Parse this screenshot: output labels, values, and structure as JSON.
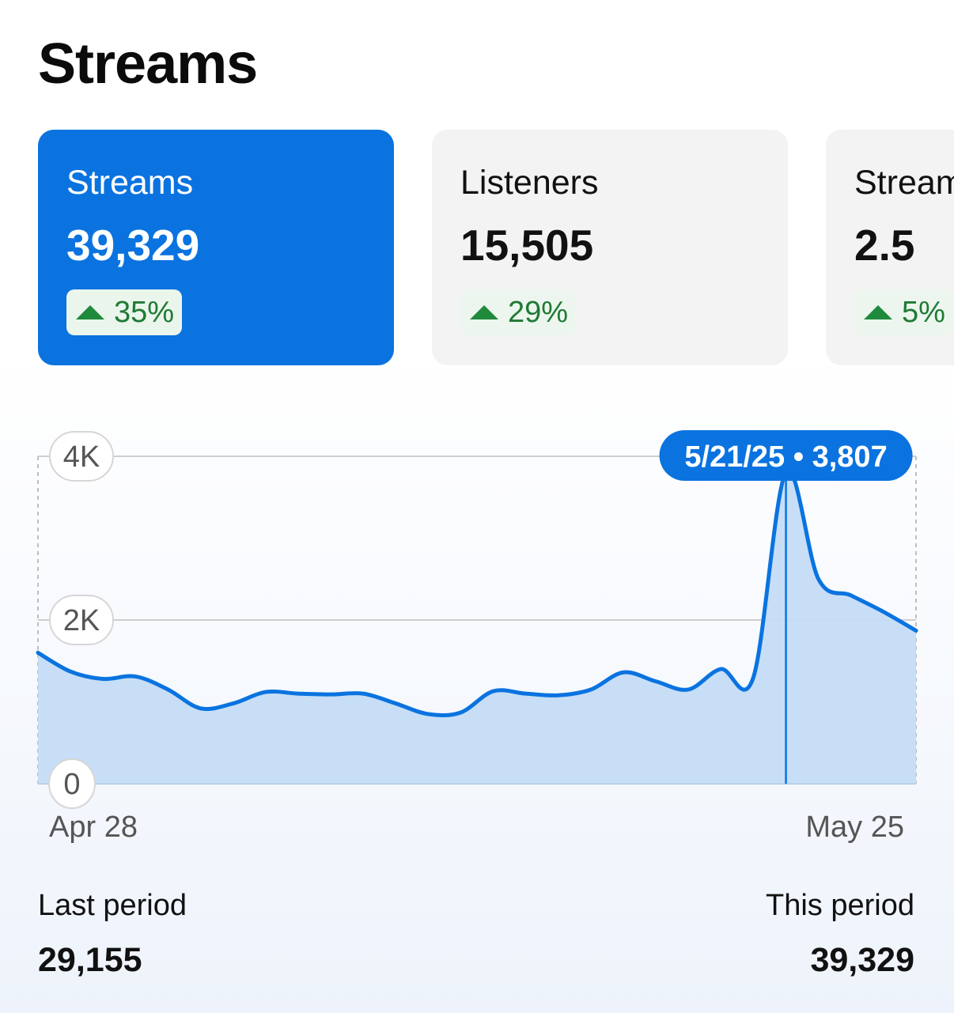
{
  "page_title": "Streams",
  "cards": [
    {
      "label": "Streams",
      "value": "39,329",
      "change": "35%",
      "active": true
    },
    {
      "label": "Listeners",
      "value": "15,505",
      "change": "29%",
      "active": false
    },
    {
      "label": "Streams per listener",
      "value": "2.5",
      "change": "5%",
      "active": false
    }
  ],
  "colors": {
    "accent": "#0a73e0",
    "fill": "#c4dcf5",
    "positive": "#1f8a3c"
  },
  "chart_data": {
    "type": "area",
    "y_tick_labels": [
      "0",
      "2K",
      "4K"
    ],
    "y_ticks": [
      0,
      2000,
      4000
    ],
    "ylim": [
      0,
      4000
    ],
    "x_tick_labels": [
      "Apr 28",
      "May 25"
    ],
    "tooltip": {
      "date": "5/21/25",
      "value": "3,807",
      "separator": "•"
    },
    "series": [
      {
        "x": [
          "4/28/25",
          "4/29/25",
          "4/30/25",
          "5/1/25",
          "5/2/25",
          "5/3/25",
          "5/4/25",
          "5/5/25",
          "5/6/25",
          "5/7/25",
          "5/8/25",
          "5/9/25",
          "5/10/25",
          "5/11/25",
          "5/12/25",
          "5/13/25",
          "5/14/25",
          "5/15/25",
          "5/16/25",
          "5/17/25",
          "5/18/25",
          "5/19/25",
          "5/20/25",
          "5/21/25",
          "5/22/25",
          "5/23/25",
          "5/24/25",
          "5/25/25"
        ],
        "values": [
          1600,
          1370,
          1280,
          1310,
          1150,
          920,
          980,
          1120,
          1100,
          1090,
          1100,
          980,
          850,
          870,
          1130,
          1100,
          1080,
          1150,
          1360,
          1250,
          1150,
          1400,
          1300,
          3807,
          2500,
          2300,
          2100,
          1870
        ]
      }
    ],
    "highlight_index": 23
  },
  "footer": {
    "last_label": "Last period",
    "last_value": "29,155",
    "this_label": "This period",
    "this_value": "39,329"
  }
}
